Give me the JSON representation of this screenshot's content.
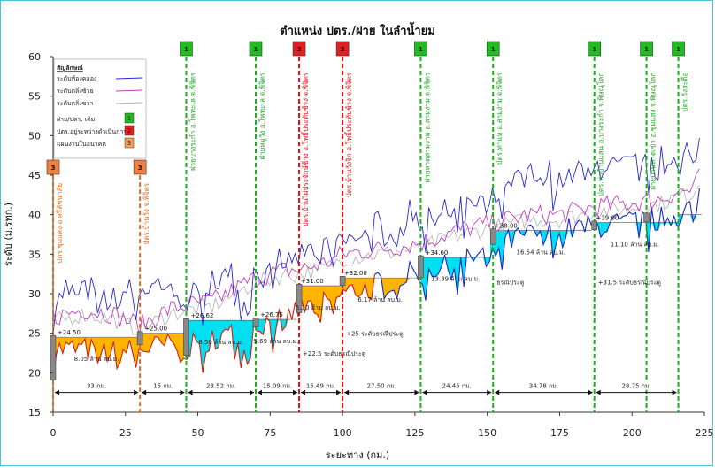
{
  "chart_data": {
    "type": "line",
    "title": "ตำแหน่ง ปตร./ฝาย ในลำน้ำยม",
    "xlabel": "ระยะทาง (กม.)",
    "ylabel": "ระดับ (ม.รทก.)",
    "xlim": [
      0,
      225
    ],
    "ylim": [
      15,
      60
    ],
    "x_ticks": [
      0,
      25,
      50,
      75,
      100,
      125,
      150,
      175,
      200,
      225
    ],
    "y_ticks": [
      15,
      20,
      25,
      30,
      35,
      40,
      45,
      50,
      55,
      60
    ],
    "grid": false,
    "legend": {
      "title": "สัญลักษณ์",
      "placement": "top-left",
      "items": [
        {
          "label": "ระดับท้องคลอง",
          "type": "line",
          "color": "#2a2ad0"
        },
        {
          "label": "ระดับตลิ่งซ้าย",
          "type": "line",
          "color": "#c040c0"
        },
        {
          "label": "ระดับตลิ่งขวา",
          "type": "line",
          "color": "#b0b0b0"
        },
        {
          "label": "ฝาย/ปตร. เดิม",
          "type": "box",
          "color": "#22bb22",
          "text": "1"
        },
        {
          "label": "ปตร.อยู่ระหว่างดำเนินการ",
          "type": "box",
          "color": "#e02020",
          "text": "2"
        },
        {
          "label": "แผนงานในอนาคต",
          "type": "box",
          "color": "#f5a05a",
          "text": "3"
        }
      ]
    },
    "structures": [
      {
        "x": 0,
        "name": "ปตร.ชุมแสง อ.ศรีสัชนาลัย",
        "status": "3",
        "color": "#e07020",
        "marker_top": 45
      },
      {
        "x": 30,
        "name": "ปตร.บ้านวัง จ.พิจิตร",
        "status": "3",
        "color": "#e07020",
        "marker_top": 45
      },
      {
        "x": 46,
        "name": "ฝายบางระกำ อ.โพทะเล จ.พิจิตร",
        "status": "1",
        "color": "#22aa22",
        "marker_top": 60
      },
      {
        "x": 70,
        "name": "ฝายหมูวัง อ.โพทะเล จ.พิจิตร",
        "status": "1",
        "color": "#22aa22",
        "marker_top": 60
      },
      {
        "x": 85,
        "name": "ปตร.บ้านไผ่ประจักษ์ช้าง อ.โพธิ์ประทับช้าง จ.พิจิตร",
        "status": "2",
        "color": "#dd1111",
        "marker_top": 60
      },
      {
        "x": 100,
        "name": "ปตร.บ้านวังจิก อ.โพธิ์ประทับช้าง จ.พิจิตร",
        "status": "2",
        "color": "#dd1111",
        "marker_top": 60
      },
      {
        "x": 127,
        "name": "ฝายหาดสามง่าม อ.สามง่าม จ.พิจิตร",
        "status": "1",
        "color": "#22aa22",
        "marker_top": 60
      },
      {
        "x": 152,
        "name": "ปตร.ท่าแห อ.สามง่าม จ.พิจิตร",
        "status": "1",
        "color": "#22aa22",
        "marker_top": 60
      },
      {
        "x": 187,
        "name": "ปตร.ท่าบ้านแสน อ.บางระกำ จ.พิษณุโลก",
        "status": "1",
        "color": "#22aa22",
        "marker_top": 60
      },
      {
        "x": 205,
        "name": "ฝายบ้านหาดเข้า อ.ชุมแสง จ.พิษณุโลก",
        "status": "1",
        "color": "#22aa22",
        "marker_top": 60
      },
      {
        "x": 216,
        "name": "ปตร.วังสะตือ",
        "status": "1",
        "color": "#22aa22",
        "marker_top": 60
      }
    ],
    "reservoirs": [
      {
        "x_start": 0,
        "x_end": 30,
        "level": 24.5,
        "level_label": "+24.50",
        "volume_label": "8.05 ล้าน ลบ.ม.",
        "color": "#ffb400"
      },
      {
        "x_start": 30,
        "x_end": 46,
        "level": 25.0,
        "level_label": "+25.00",
        "volume_label": "",
        "color": "#ffb400"
      },
      {
        "x_start": 46,
        "x_end": 70,
        "level": 26.62,
        "level_label": "+26.62",
        "volume_label": "8.50 ล้าน ลบ.ม.",
        "color": "#00e0f0"
      },
      {
        "x_start": 70,
        "x_end": 84,
        "level": 26.75,
        "level_label": "+26.75",
        "volume_label": "5.69 ล้าน ลบ.ม.",
        "color": "#00e0f0"
      },
      {
        "x_start": 84,
        "x_end": 99,
        "level": 31.0,
        "level_label": "+31.00",
        "volume_label": "5.10 ล้าน ลบ.ม.",
        "color": "#ffb400"
      },
      {
        "x_start": 99,
        "x_end": 127,
        "level": 32.0,
        "level_label": "+32.00",
        "volume_label": "6.17 ล้าน ลบ.ม.",
        "color": "#ffb400"
      },
      {
        "x_start": 127,
        "x_end": 151,
        "level": 34.6,
        "level_label": "+34.60",
        "volume_label": "13.39 ล้าน ลบ.ม.",
        "color": "#00e0f0"
      },
      {
        "x_start": 151,
        "x_end": 186,
        "level": 38.0,
        "level_label": "+38.00",
        "volume_label": "16.54 ล้าน ลบ.ม.",
        "color": "#00e0f0"
      },
      {
        "x_start": 186,
        "x_end": 216,
        "level": 39.0,
        "level_label": "+39.00",
        "volume_label": "11.10 ล้าน ลบ.ม.",
        "color": "#00e0f0"
      },
      {
        "x_start": 216,
        "x_end": 224,
        "level": 40.0,
        "level_label": "",
        "volume_label": "",
        "color": "#00e0f0"
      }
    ],
    "gate_annotations": [
      {
        "x": 85,
        "y": 22.5,
        "text": "+22.5 ระดับธรณีประตู"
      },
      {
        "x": 100,
        "y": 25,
        "text": "+25 ระดับธรณีประตู"
      },
      {
        "x": 152,
        "y": 31.5,
        "text": "ธรณีประตู"
      },
      {
        "x": 187,
        "y": 31.5,
        "text": "+31.5 ระดับธรณีประตู"
      }
    ],
    "segments": [
      {
        "x_start": 0,
        "x_end": 30,
        "label": "33 กม."
      },
      {
        "x_start": 30,
        "x_end": 46,
        "label": "15 กม."
      },
      {
        "x_start": 46,
        "x_end": 70,
        "label": "23.52 กม."
      },
      {
        "x_start": 70,
        "x_end": 85,
        "label": "15.09 กม."
      },
      {
        "x_start": 85,
        "x_end": 100,
        "label": "15.49 กม."
      },
      {
        "x_start": 100,
        "x_end": 127,
        "label": "27.50 กม."
      },
      {
        "x_start": 127,
        "x_end": 152,
        "label": "24.45 กม."
      },
      {
        "x_start": 152,
        "x_end": 187,
        "label": "34.78 กม."
      },
      {
        "x_start": 187,
        "x_end": 216,
        "label": "28.75 กม."
      }
    ],
    "bed_profile_anchors": [
      [
        0,
        23
      ],
      [
        10,
        23
      ],
      [
        20,
        22.5
      ],
      [
        30,
        23
      ],
      [
        40,
        23.5
      ],
      [
        46,
        23
      ],
      [
        55,
        24.5
      ],
      [
        65,
        25
      ],
      [
        70,
        26
      ],
      [
        80,
        27
      ],
      [
        85,
        28
      ],
      [
        95,
        29
      ],
      [
        100,
        30
      ],
      [
        110,
        31
      ],
      [
        120,
        32
      ],
      [
        127,
        33
      ],
      [
        140,
        33.5
      ],
      [
        152,
        36
      ],
      [
        165,
        37.5
      ],
      [
        175,
        38
      ],
      [
        187,
        38.5
      ],
      [
        200,
        39
      ],
      [
        210,
        39.5
      ],
      [
        216,
        40
      ],
      [
        220,
        41
      ],
      [
        224,
        43
      ]
    ],
    "bank_left_anchors": [
      [
        0,
        27
      ],
      [
        10,
        28
      ],
      [
        20,
        27.5
      ],
      [
        30,
        26
      ],
      [
        40,
        28
      ],
      [
        46,
        28.5
      ],
      [
        55,
        29
      ],
      [
        65,
        31
      ],
      [
        70,
        32
      ],
      [
        80,
        33
      ],
      [
        85,
        33
      ],
      [
        95,
        34
      ],
      [
        100,
        35
      ],
      [
        110,
        35.5
      ],
      [
        120,
        36
      ],
      [
        127,
        36.5
      ],
      [
        140,
        38
      ],
      [
        152,
        39
      ],
      [
        165,
        40
      ],
      [
        175,
        40
      ],
      [
        187,
        41
      ],
      [
        200,
        41.5
      ],
      [
        210,
        42
      ],
      [
        216,
        43
      ],
      [
        220,
        43
      ],
      [
        224,
        45
      ]
    ]
  }
}
